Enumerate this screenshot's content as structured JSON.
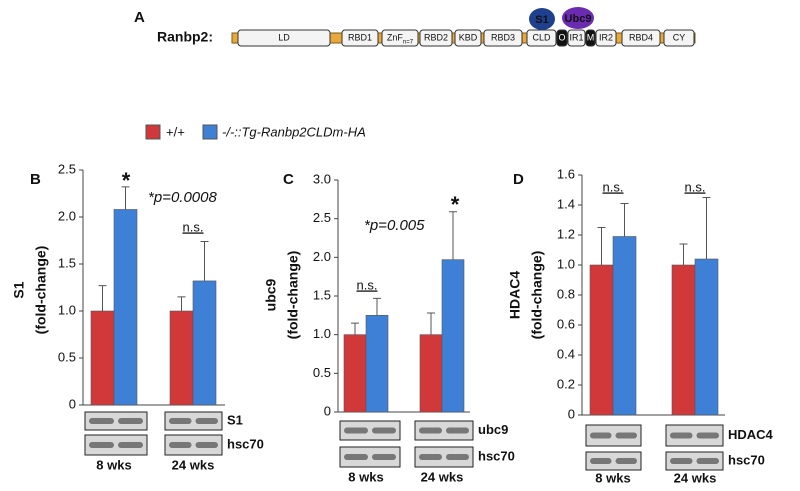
{
  "diagram": {
    "panel": "A",
    "protein": "Ranbp2:",
    "domains": [
      {
        "label": "LD"
      },
      {
        "label": "RBD1"
      },
      {
        "label": "ZnF",
        "sub": "n=7"
      },
      {
        "label": "RBD2"
      },
      {
        "label": "KBD"
      },
      {
        "label": "RBD3"
      },
      {
        "label": "CLD"
      },
      {
        "label": "O"
      },
      {
        "label": "IR1"
      },
      {
        "label": "M"
      },
      {
        "label": "IR2"
      },
      {
        "label": "RBD4"
      },
      {
        "label": "CY"
      }
    ],
    "binders": [
      "S1",
      "Ubc9"
    ]
  },
  "chart_data": [
    {
      "type": "bar",
      "panel": "B",
      "ylabel": [
        "S1",
        "(fold-change)"
      ],
      "categories": [
        "8 wks",
        "24 wks"
      ],
      "series": [
        {
          "name": "+/+",
          "color": "#d1383a",
          "values": [
            1.0,
            1.0
          ],
          "errors": [
            0.27,
            0.15
          ]
        },
        {
          "name": "-/-::Tg-Ranbp2CLDm-HA",
          "color": "#3d80d6",
          "values": [
            2.08,
            1.32
          ],
          "errors": [
            0.24,
            0.42
          ]
        }
      ],
      "ylim": [
        0,
        2.5
      ],
      "yticks": [
        0,
        0.5,
        {
          "value": 1,
          "label": "1.0"
        },
        1.5,
        {
          "value": 2,
          "label": "2.0"
        },
        2.5
      ],
      "annotations": [
        "*",
        "*p=0.0008",
        "n.s."
      ],
      "blot_labels": [
        "S1",
        "hsc70"
      ]
    },
    {
      "type": "bar",
      "panel": "C",
      "ylabel": [
        "ubc9",
        "(fold-change)"
      ],
      "categories": [
        "8 wks",
        "24 wks"
      ],
      "series": [
        {
          "color": "#d1383a",
          "values": [
            1.0,
            1.0
          ],
          "errors": [
            0.15,
            0.28
          ]
        },
        {
          "color": "#3d80d6",
          "values": [
            1.25,
            1.97
          ],
          "errors": [
            0.22,
            0.62
          ]
        }
      ],
      "ylim": [
        0,
        3
      ],
      "yticks": [
        0,
        0.5,
        {
          "value": 1,
          "label": "1.0"
        },
        1.5,
        {
          "value": 2,
          "label": "2.0"
        },
        2.5,
        {
          "value": 3,
          "label": "3.0"
        }
      ],
      "annotations": [
        "n.s.",
        "*p=0.005",
        "*"
      ],
      "blot_labels": [
        "ubc9",
        "hsc70"
      ]
    },
    {
      "type": "bar",
      "panel": "D",
      "ylabel": [
        "HDAC4",
        "(fold-change)"
      ],
      "categories": [
        "8 wks",
        "24 wks"
      ],
      "series": [
        {
          "color": "#d1383a",
          "values": [
            1.0,
            1.0
          ],
          "errors": [
            0.25,
            0.14
          ]
        },
        {
          "color": "#3d80d6",
          "values": [
            1.19,
            1.04
          ],
          "errors": [
            0.22,
            0.41
          ]
        }
      ],
      "ylim": [
        0,
        1.6
      ],
      "yticks": [
        0,
        0.2,
        0.4,
        0.6,
        0.8,
        {
          "value": 1,
          "label": "1.0"
        },
        1.2,
        1.4,
        1.6
      ],
      "annotations": [
        "n.s.",
        "n.s."
      ],
      "blot_labels": [
        "HDAC4",
        "hsc70"
      ]
    }
  ]
}
